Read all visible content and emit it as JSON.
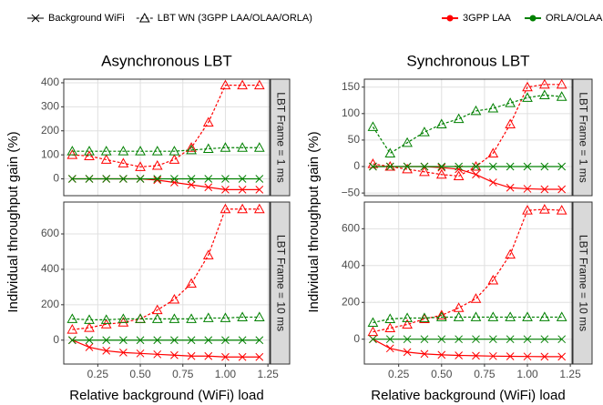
{
  "legend": {
    "styles": [
      {
        "label": "Background WiFi",
        "marker": "x",
        "dashed": false
      },
      {
        "label": "LBT WN (3GPP LAA/OLAA/ORLA)",
        "marker": "triangle",
        "dashed": true
      }
    ],
    "groups": [
      {
        "label": "3GPP LAA",
        "color": "#ff0000"
      },
      {
        "label": "ORLA/OLAA",
        "color": "#008000"
      }
    ]
  },
  "chart_data": [
    {
      "type": "line",
      "title": "Asynchronous LBT",
      "y_label": "Individual throughput gain (%)",
      "strip": "LBT Frame = 1 ms",
      "x": [
        0.1,
        0.2,
        0.3,
        0.4,
        0.5,
        0.6,
        0.7,
        0.8,
        0.9,
        1.0,
        1.1,
        1.2
      ],
      "xlim": [
        0.05,
        1.26
      ],
      "xticks": [
        0.25,
        {
          "value": 0.5,
          "label": "0.50"
        },
        0.75,
        {
          "value": 1.0,
          "label": "1.00"
        },
        1.25
      ],
      "ylim": [
        -70,
        415
      ],
      "yticks": [
        0,
        100,
        200,
        300,
        400
      ],
      "grid": true,
      "series": [
        {
          "color": "#ff0000",
          "marker": "x",
          "dashed": false,
          "values": [
            0,
            0,
            0,
            0,
            0,
            -5,
            -15,
            -25,
            -35,
            -45,
            -45,
            -45
          ]
        },
        {
          "color": "#ff0000",
          "marker": "triangle",
          "dashed": true,
          "values": [
            100,
            95,
            80,
            65,
            50,
            55,
            80,
            130,
            235,
            390,
            390,
            390
          ]
        },
        {
          "color": "#008000",
          "marker": "x",
          "dashed": false,
          "values": [
            0,
            0,
            0,
            0,
            0,
            0,
            0,
            0,
            0,
            0,
            0,
            0
          ]
        },
        {
          "color": "#008000",
          "marker": "triangle",
          "dashed": true,
          "values": [
            115,
            115,
            115,
            115,
            115,
            115,
            115,
            120,
            125,
            130,
            130,
            130
          ]
        }
      ]
    },
    {
      "type": "line",
      "title": "Synchronous LBT",
      "y_label": "Individual throughput gain (%)",
      "strip": "LBT Frame = 1 ms",
      "x": [
        0.1,
        0.2,
        0.3,
        0.4,
        0.5,
        0.6,
        0.7,
        0.8,
        0.9,
        1.0,
        1.1,
        1.2
      ],
      "xlim": [
        0.05,
        1.26
      ],
      "xticks": [
        0.25,
        {
          "value": 0.5,
          "label": "0.50"
        },
        0.75,
        {
          "value": 1.0,
          "label": "1.00"
        },
        1.25
      ],
      "ylim": [
        -55,
        165
      ],
      "yticks": [
        {
          "value": -50,
          "label": "−50"
        },
        0,
        50,
        100,
        150
      ],
      "grid": true,
      "series": [
        {
          "color": "#ff0000",
          "marker": "x",
          "dashed": false,
          "values": [
            0,
            0,
            0,
            0,
            -2,
            -5,
            -15,
            -30,
            -40,
            -42,
            -43,
            -43
          ]
        },
        {
          "color": "#ff0000",
          "marker": "triangle",
          "dashed": true,
          "values": [
            5,
            0,
            -5,
            -10,
            -15,
            -18,
            0,
            25,
            80,
            150,
            155,
            155
          ]
        },
        {
          "color": "#008000",
          "marker": "x",
          "dashed": false,
          "values": [
            0,
            0,
            0,
            0,
            0,
            0,
            0,
            0,
            0,
            0,
            0,
            0
          ]
        },
        {
          "color": "#008000",
          "marker": "triangle",
          "dashed": true,
          "values": [
            75,
            25,
            45,
            65,
            80,
            90,
            105,
            110,
            120,
            130,
            135,
            132
          ]
        }
      ]
    },
    {
      "type": "line",
      "x_label": "Relative background (WiFi) load",
      "strip": "LBT Frame = 10 ms",
      "x": [
        0.1,
        0.2,
        0.3,
        0.4,
        0.5,
        0.6,
        0.7,
        0.8,
        0.9,
        1.0,
        1.1,
        1.2
      ],
      "xlim": [
        0.05,
        1.26
      ],
      "xticks": [
        0.25,
        {
          "value": 0.5,
          "label": "0.50"
        },
        0.75,
        {
          "value": 1.0,
          "label": "1.00"
        },
        1.25
      ],
      "ylim": [
        -135,
        780
      ],
      "yticks": [
        0,
        200,
        400,
        600
      ],
      "grid": true,
      "series": [
        {
          "color": "#ff0000",
          "marker": "x",
          "dashed": false,
          "values": [
            0,
            -40,
            -60,
            -70,
            -75,
            -80,
            -85,
            -90,
            -90,
            -95,
            -95,
            -95
          ]
        },
        {
          "color": "#ff0000",
          "marker": "triangle",
          "dashed": true,
          "values": [
            60,
            70,
            90,
            100,
            120,
            170,
            230,
            320,
            480,
            740,
            740,
            740
          ]
        },
        {
          "color": "#008000",
          "marker": "x",
          "dashed": false,
          "values": [
            0,
            0,
            0,
            0,
            0,
            0,
            0,
            0,
            0,
            0,
            0,
            0
          ]
        },
        {
          "color": "#008000",
          "marker": "triangle",
          "dashed": true,
          "values": [
            120,
            115,
            115,
            120,
            120,
            120,
            120,
            120,
            125,
            125,
            130,
            130
          ]
        }
      ]
    },
    {
      "type": "line",
      "x_label": "Relative background (WiFi) load",
      "strip": "LBT Frame = 10 ms",
      "x": [
        0.1,
        0.2,
        0.3,
        0.4,
        0.5,
        0.6,
        0.7,
        0.8,
        0.9,
        1.0,
        1.1,
        1.2
      ],
      "xlim": [
        0.05,
        1.26
      ],
      "xticks": [
        0.25,
        {
          "value": 0.5,
          "label": "0.50"
        },
        0.75,
        {
          "value": 1.0,
          "label": "1.00"
        },
        1.25
      ],
      "ylim": [
        -135,
        745
      ],
      "yticks": [
        0,
        200,
        400,
        600
      ],
      "grid": true,
      "series": [
        {
          "color": "#ff0000",
          "marker": "x",
          "dashed": false,
          "values": [
            0,
            -50,
            -70,
            -80,
            -85,
            -88,
            -90,
            -92,
            -93,
            -94,
            -95,
            -95
          ]
        },
        {
          "color": "#ff0000",
          "marker": "triangle",
          "dashed": true,
          "values": [
            40,
            60,
            80,
            110,
            130,
            170,
            220,
            320,
            460,
            700,
            705,
            700
          ]
        },
        {
          "color": "#008000",
          "marker": "x",
          "dashed": false,
          "values": [
            0,
            0,
            0,
            0,
            0,
            0,
            0,
            0,
            0,
            0,
            0,
            0
          ]
        },
        {
          "color": "#008000",
          "marker": "triangle",
          "dashed": true,
          "values": [
            90,
            110,
            115,
            115,
            120,
            120,
            120,
            120,
            120,
            120,
            120,
            120
          ]
        }
      ]
    }
  ]
}
